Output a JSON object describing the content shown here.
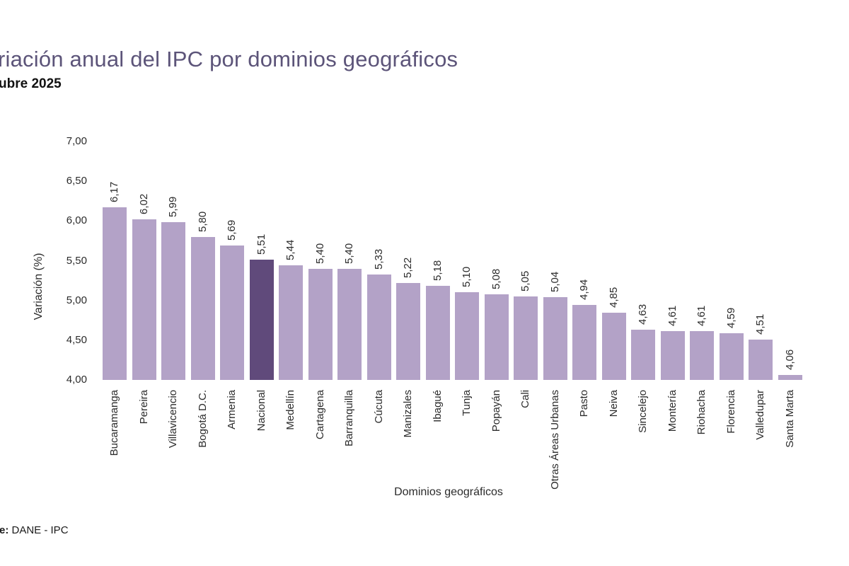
{
  "header": {
    "title": "riación anual del IPC por dominios geográficos",
    "subtitle": "ubre 2025"
  },
  "chart_data": {
    "type": "bar",
    "title": "riación anual del IPC por dominios geográficos",
    "subtitle": "ubre 2025",
    "xlabel": "Dominios geográficos",
    "ylabel": "Variación (%)",
    "ylim": [
      4.0,
      7.0
    ],
    "ytick_step": 0.5,
    "ytick_labels": [
      "7,00",
      "6,50",
      "6,00",
      "5,50",
      "5,00",
      "4,50",
      "4,00"
    ],
    "grid": false,
    "legend": "none",
    "bar_color": "#b3a2c7",
    "highlight_color": "#604a7b",
    "highlight_index": 5,
    "highlight_category": "Nacional",
    "categories": [
      "Bucaramanga",
      "Pereira",
      "Villavicencio",
      "Bogotá D.C.",
      "Armenia",
      "Nacional",
      "Medellín",
      "Cartagena",
      "Barranquilla",
      "Cúcuta",
      "Manizales",
      "Ibagué",
      "Tunja",
      "Popayán",
      "Cali",
      "Otras Áreas Urbanas",
      "Pasto",
      "Neiva",
      "Sincelejo",
      "Montería",
      "Riohacha",
      "Florencia",
      "Valledupar",
      "Santa Marta"
    ],
    "values": [
      6.17,
      6.02,
      5.99,
      5.8,
      5.69,
      5.51,
      5.44,
      5.4,
      5.4,
      5.33,
      5.22,
      5.18,
      5.1,
      5.08,
      5.05,
      5.04,
      4.94,
      4.85,
      4.63,
      4.61,
      4.61,
      4.59,
      4.51,
      4.06
    ],
    "value_labels": [
      "6,17",
      "6,02",
      "5,99",
      "5,80",
      "5,69",
      "5,51",
      "5,44",
      "5,40",
      "5,40",
      "5,33",
      "5,22",
      "5,18",
      "5,10",
      "5,08",
      "5,05",
      "5,04",
      "4,94",
      "4,85",
      "4,63",
      "4,61",
      "4,61",
      "4,59",
      "4,51",
      "4,06"
    ]
  },
  "footer": {
    "source_bold": "e:",
    "source_text": " DANE - IPC"
  }
}
